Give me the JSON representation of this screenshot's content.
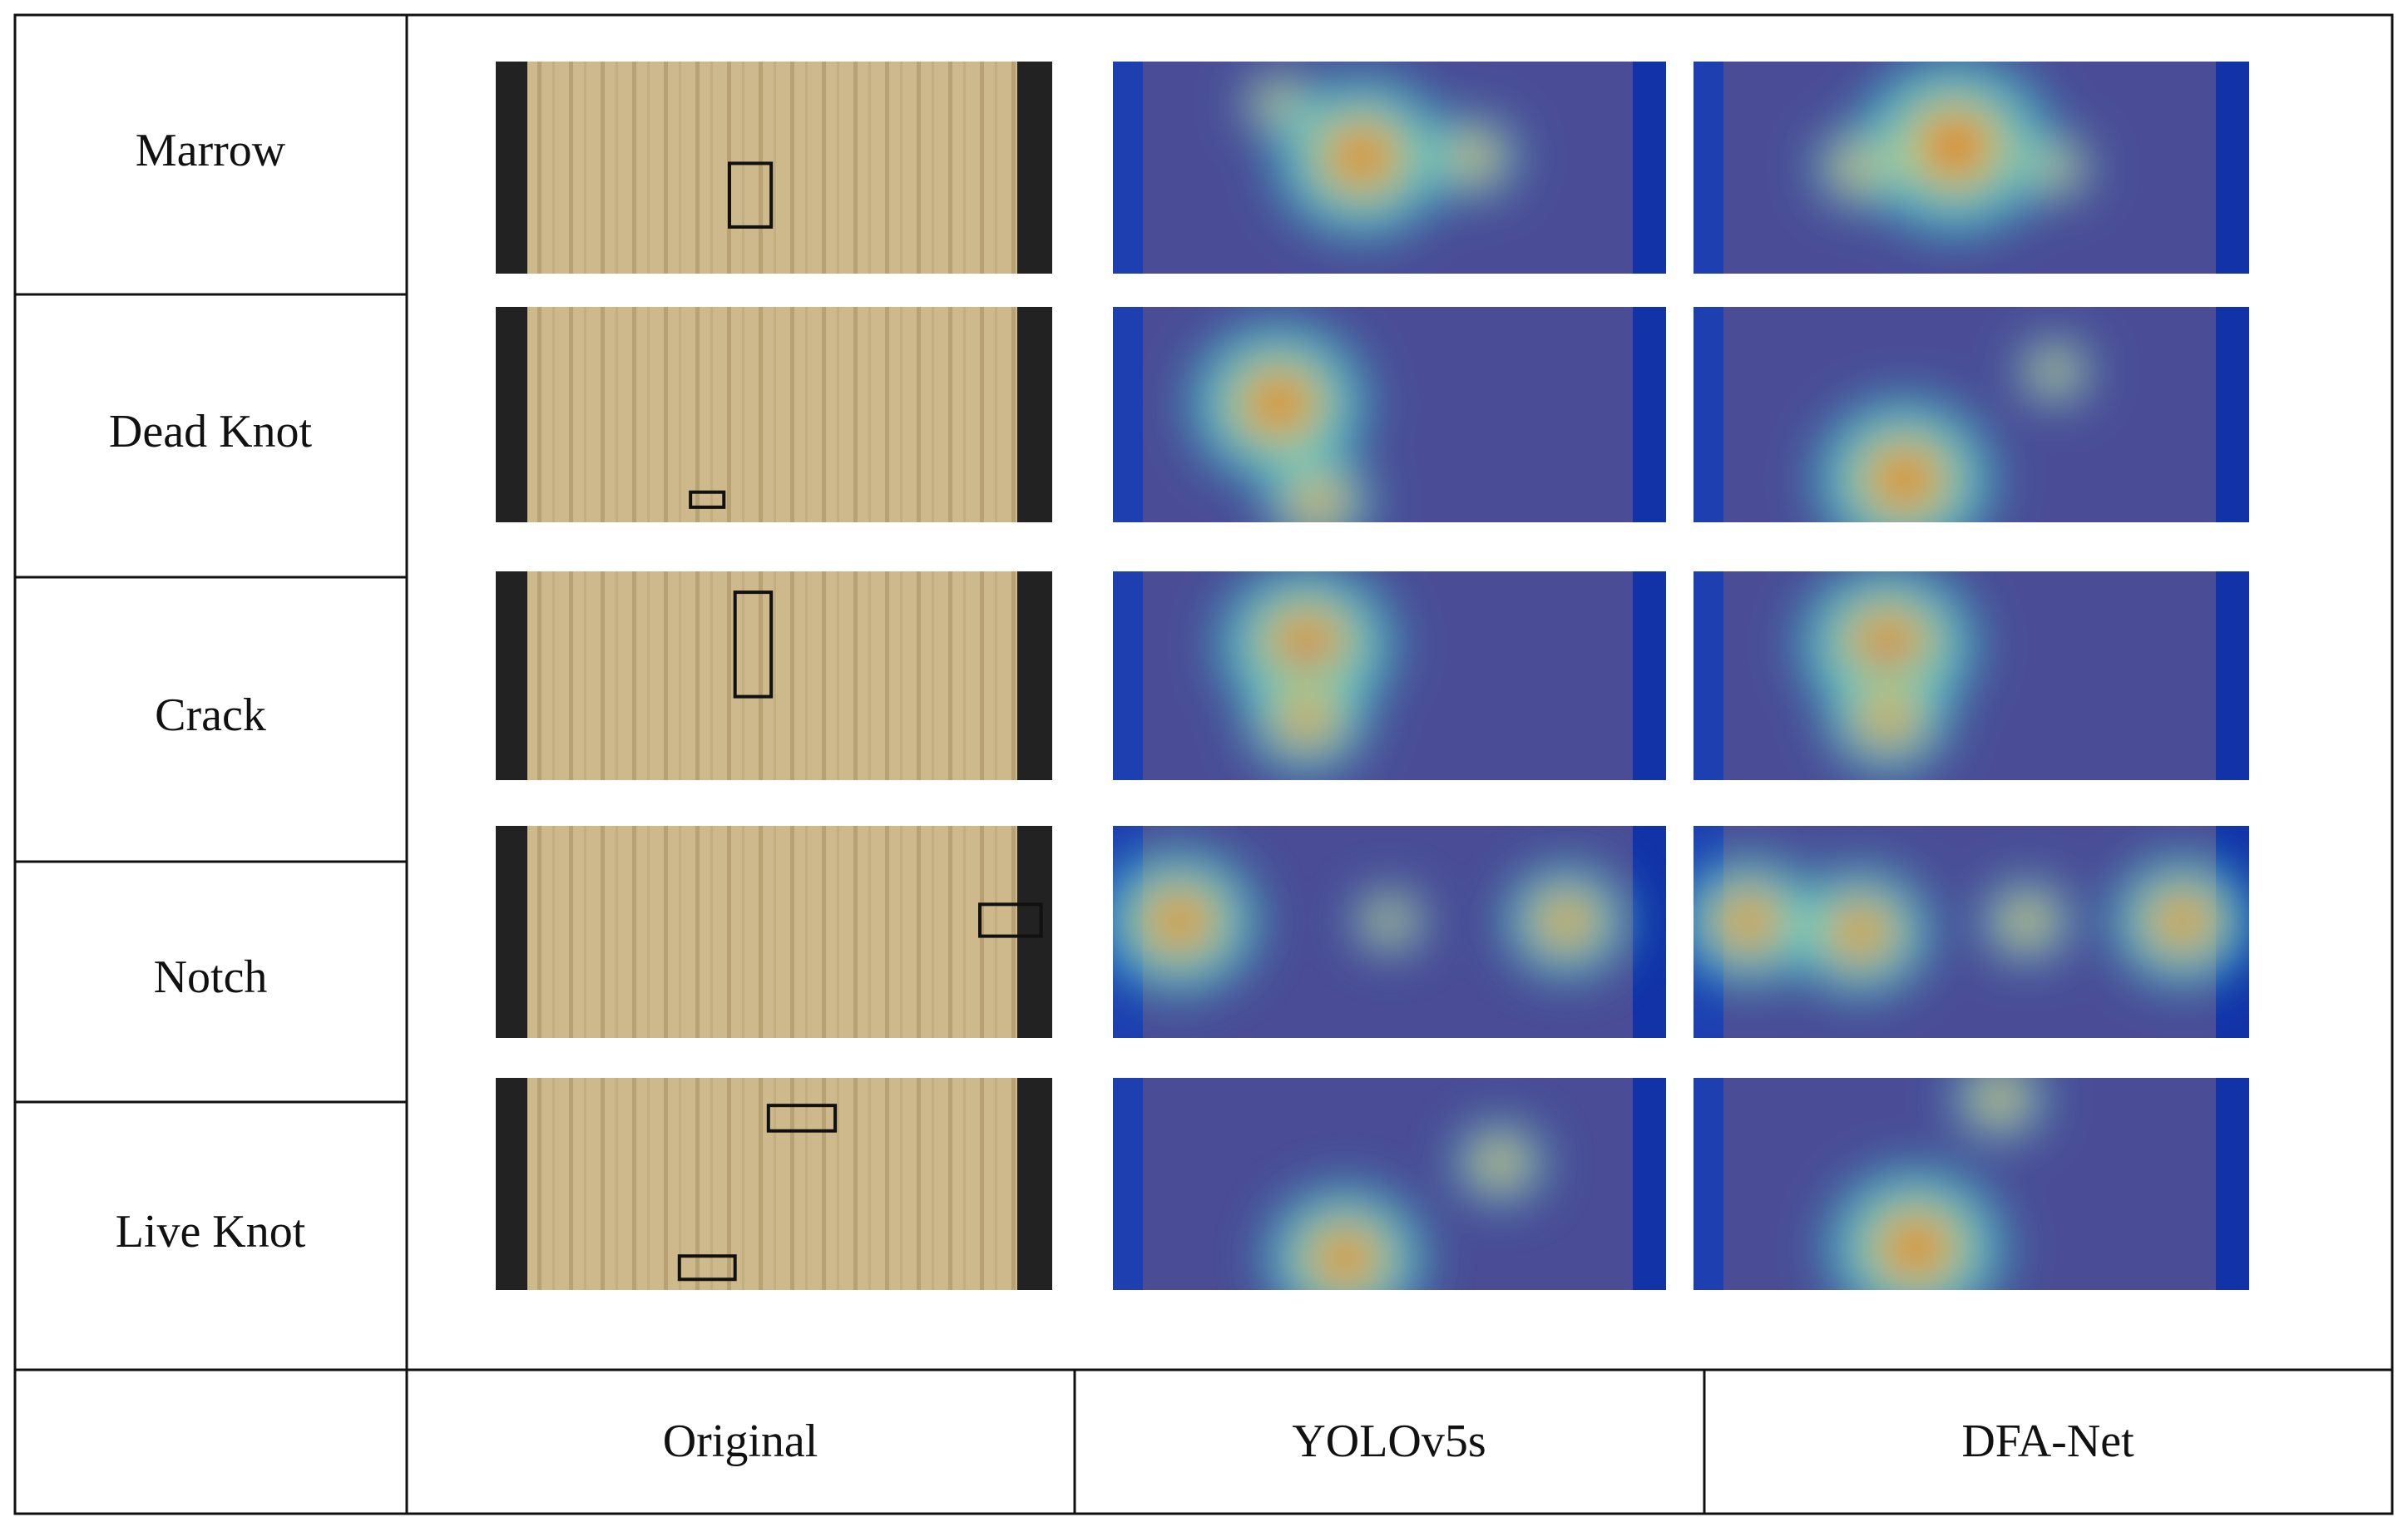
{
  "rows": [
    "Marrow",
    "Dead Knot",
    "Crack",
    "Notch",
    "Live Knot"
  ],
  "columns": [
    "Original",
    "YOLOv5s",
    "DFA-Net"
  ]
}
